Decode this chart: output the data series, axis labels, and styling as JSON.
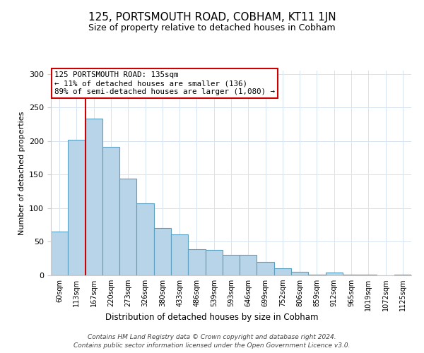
{
  "title": "125, PORTSMOUTH ROAD, COBHAM, KT11 1JN",
  "subtitle": "Size of property relative to detached houses in Cobham",
  "xlabel": "Distribution of detached houses by size in Cobham",
  "ylabel": "Number of detached properties",
  "bar_labels": [
    "60sqm",
    "113sqm",
    "167sqm",
    "220sqm",
    "273sqm",
    "326sqm",
    "380sqm",
    "433sqm",
    "486sqm",
    "539sqm",
    "593sqm",
    "646sqm",
    "699sqm",
    "752sqm",
    "806sqm",
    "859sqm",
    "912sqm",
    "965sqm",
    "1019sqm",
    "1072sqm",
    "1125sqm"
  ],
  "bar_values": [
    65,
    202,
    233,
    191,
    144,
    107,
    70,
    61,
    39,
    38,
    31,
    30,
    20,
    10,
    5,
    1,
    4,
    1,
    1,
    0,
    1
  ],
  "bar_color": "#b8d4e8",
  "bar_edge_color": "#5a9fc0",
  "vline_color": "#cc0000",
  "annotation_title": "125 PORTSMOUTH ROAD: 135sqm",
  "annotation_line1": "← 11% of detached houses are smaller (136)",
  "annotation_line2": "89% of semi-detached houses are larger (1,080) →",
  "annotation_box_color": "#ffffff",
  "annotation_box_edge_color": "#cc0000",
  "ylim": [
    0,
    305
  ],
  "footer1": "Contains HM Land Registry data © Crown copyright and database right 2024.",
  "footer2": "Contains public sector information licensed under the Open Government Licence v3.0.",
  "background_color": "#ffffff",
  "grid_color": "#d4e4f0"
}
